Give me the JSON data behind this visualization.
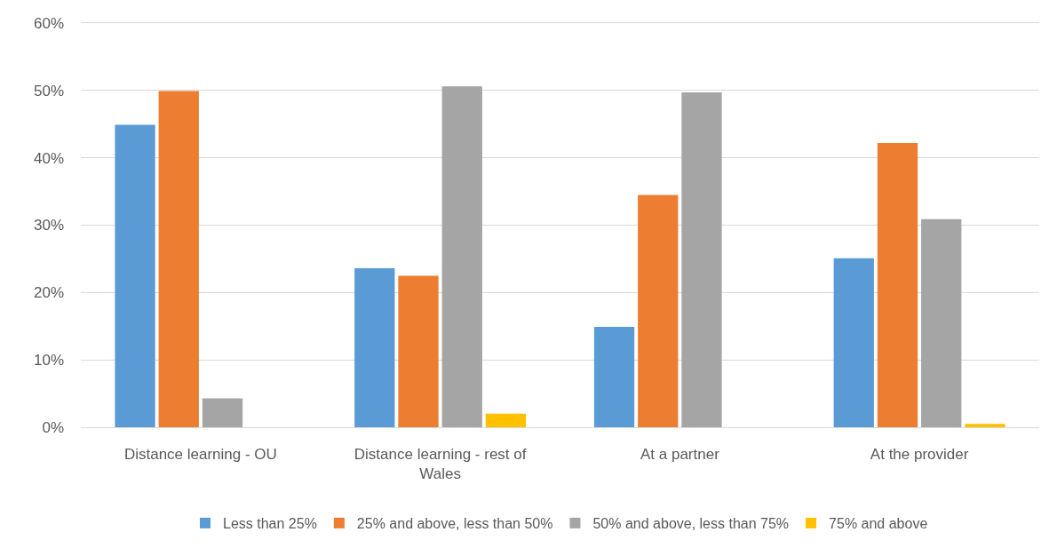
{
  "chart_data": {
    "type": "bar",
    "categories": [
      "Distance learning - OU",
      "Distance learning - rest of Wales",
      "At a partner",
      "At the provider"
    ],
    "series": [
      {
        "name": "Less than 25%",
        "color": "#5b9bd5",
        "values": [
          44.9,
          23.6,
          14.9,
          25.1
        ]
      },
      {
        "name": "25% and above, less than 50%",
        "color": "#ed7d31",
        "values": [
          49.9,
          22.5,
          34.5,
          42.2
        ]
      },
      {
        "name": "50% and above, less than 75%",
        "color": "#a5a5a5",
        "values": [
          4.3,
          50.6,
          49.7,
          30.9
        ]
      },
      {
        "name": "75% and above",
        "color": "#ffc000",
        "values": [
          0,
          2.0,
          0,
          0.5
        ]
      }
    ],
    "ylim": [
      0,
      60
    ],
    "yticks": [
      {
        "value": 0,
        "label": "0%"
      },
      {
        "value": 10,
        "label": "10%"
      },
      {
        "value": 20,
        "label": "20%"
      },
      {
        "value": 30,
        "label": "30%"
      },
      {
        "value": 40,
        "label": "40%"
      },
      {
        "value": 50,
        "label": "50%"
      },
      {
        "value": 60,
        "label": "60%"
      }
    ],
    "grid": "y",
    "legend": "bottom"
  }
}
